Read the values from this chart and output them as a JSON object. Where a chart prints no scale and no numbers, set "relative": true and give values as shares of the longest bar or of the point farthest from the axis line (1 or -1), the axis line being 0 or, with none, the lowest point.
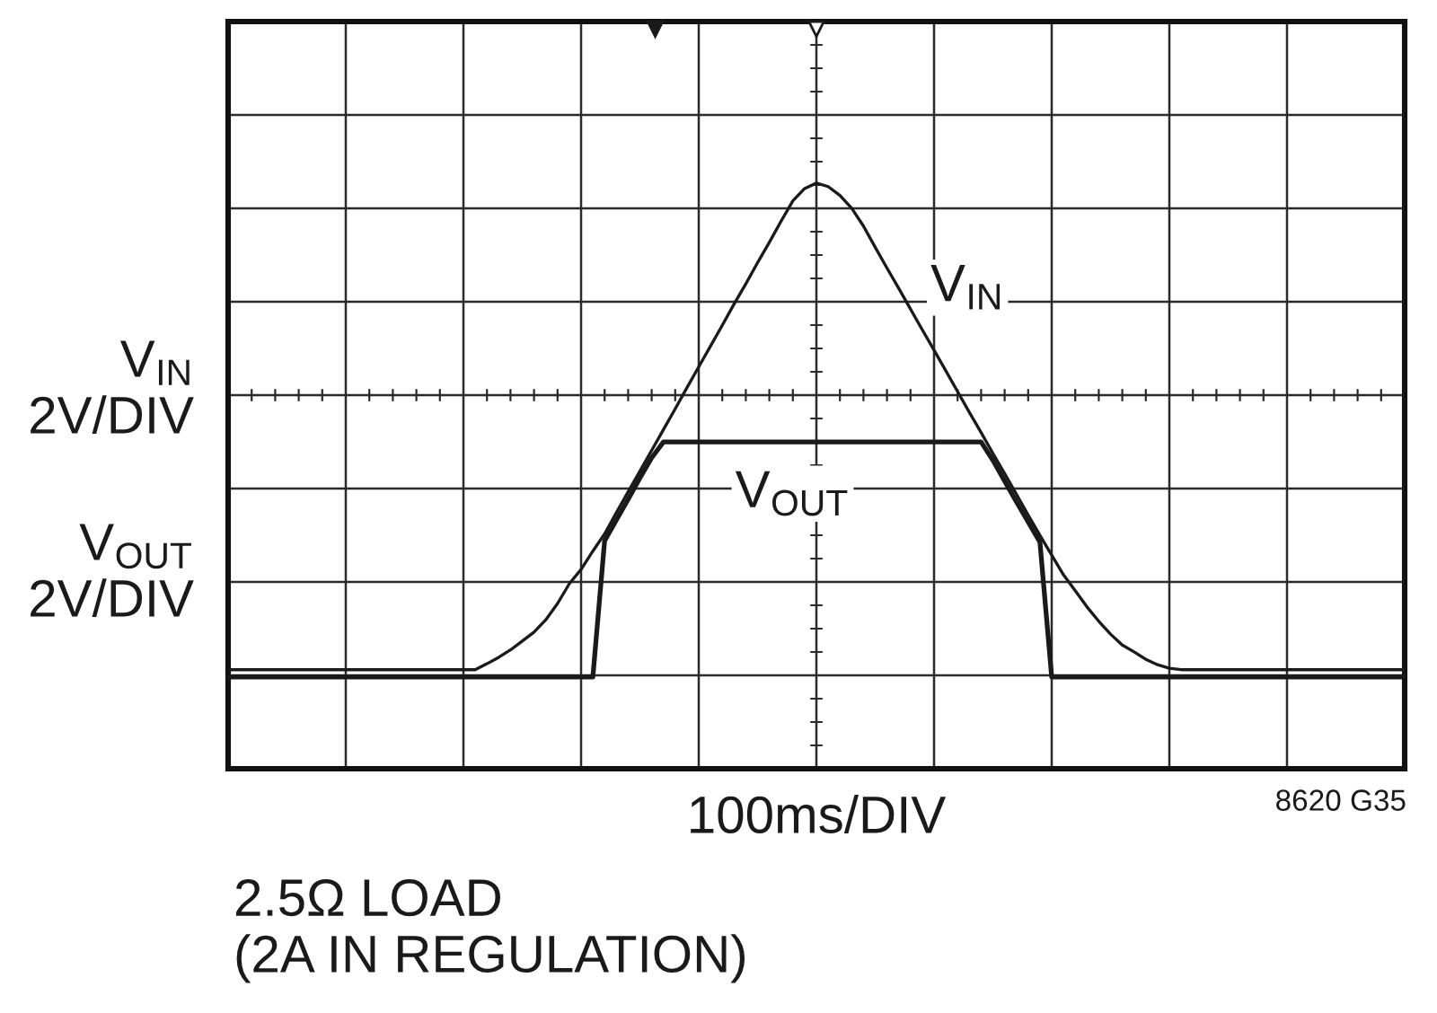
{
  "chart_data": {
    "type": "line",
    "relative": true,
    "grid": true,
    "xlabel": "100ms/DIV",
    "annotations": [
      "V$_{IN}$\n2V/DIV",
      "V$_{OUT}$\n2V/DIV",
      "8620 G35",
      "2.5Ω LOAD\n(2A IN REGULATION)"
    ],
    "categories": [
      null,
      null,
      null,
      null,
      null,
      null,
      null,
      null,
      null,
      null,
      null,
      null,
      null,
      null,
      null,
      null,
      null,
      null,
      null,
      null,
      null,
      null,
      null,
      null,
      null,
      null,
      null,
      null,
      null,
      null,
      null,
      null,
      null,
      null,
      null,
      null,
      null,
      null,
      null,
      null,
      null,
      null,
      null,
      null,
      null,
      null,
      null,
      null,
      null,
      null,
      null,
      null,
      null,
      null,
      null,
      null,
      null,
      null,
      null,
      null,
      null,
      null,
      null,
      null,
      null,
      null,
      null,
      null,
      null,
      null,
      null,
      null,
      null,
      null,
      null,
      null,
      null,
      null,
      null,
      null,
      null,
      null,
      null,
      null,
      null,
      null,
      null,
      null,
      null,
      null,
      null,
      null,
      null,
      null,
      null,
      null,
      null,
      null,
      null,
      null,
      null
    ],
    "series": [
      {
        "name": "V$_{IN}$",
        "color": "#1a1a1a",
        "values": [
          0.015,
          0.015,
          0.015,
          0.015,
          0.015,
          0.015,
          0.015,
          0.015,
          0.015,
          0.015,
          0.015,
          0.015,
          0.015,
          0.015,
          0.015,
          0.015,
          0.015,
          0.015,
          0.015,
          0.015,
          0.015,
          0.015,
          0.027,
          0.04,
          0.055,
          0.073,
          0.091,
          0.116,
          0.149,
          0.189,
          0.218,
          0.255,
          0.29,
          0.333,
          0.375,
          0.417,
          0.459,
          0.501,
          0.543,
          0.586,
          0.628,
          0.67,
          0.712,
          0.755,
          0.796,
          0.839,
          0.88,
          0.923,
          0.964,
          0.989,
          1.0,
          0.993,
          0.975,
          0.949,
          0.913,
          0.87,
          0.828,
          0.787,
          0.745,
          0.703,
          0.662,
          0.62,
          0.578,
          0.536,
          0.495,
          0.453,
          0.412,
          0.37,
          0.328,
          0.287,
          0.247,
          0.207,
          0.175,
          0.142,
          0.113,
          0.087,
          0.065,
          0.051,
          0.036,
          0.025,
          0.018,
          0.015,
          0.015,
          0.015,
          0.015,
          0.015,
          0.015,
          0.015,
          0.015,
          0.015,
          0.015,
          0.015,
          0.015,
          0.015,
          0.015,
          0.015,
          0.015,
          0.015,
          0.015,
          0.015,
          0.015
        ]
      },
      {
        "name": "V$_{OUT}$",
        "color": "#1a1a1a",
        "values": [
          0,
          0,
          0,
          0,
          0,
          0,
          0,
          0,
          0,
          0,
          0,
          0,
          0,
          0,
          0,
          0,
          0,
          0,
          0,
          0,
          0,
          0,
          0,
          0,
          0,
          0,
          0,
          0,
          0,
          0,
          0,
          0,
          0.276,
          0.318,
          0.36,
          0.403,
          0.444,
          0.476,
          0.476,
          0.476,
          0.476,
          0.476,
          0.476,
          0.476,
          0.476,
          0.476,
          0.476,
          0.476,
          0.476,
          0.476,
          0.476,
          0.476,
          0.476,
          0.476,
          0.476,
          0.476,
          0.476,
          0.476,
          0.476,
          0.476,
          0.476,
          0.476,
          0.476,
          0.476,
          0.476,
          0.439,
          0.397,
          0.355,
          0.314,
          0.273,
          0,
          0,
          0,
          0,
          0,
          0,
          0,
          0,
          0,
          0,
          0,
          0,
          0,
          0,
          0,
          0,
          0,
          0,
          0,
          0,
          0,
          0,
          0,
          0,
          0,
          0,
          0,
          0,
          0,
          0,
          0
        ]
      }
    ]
  }
}
